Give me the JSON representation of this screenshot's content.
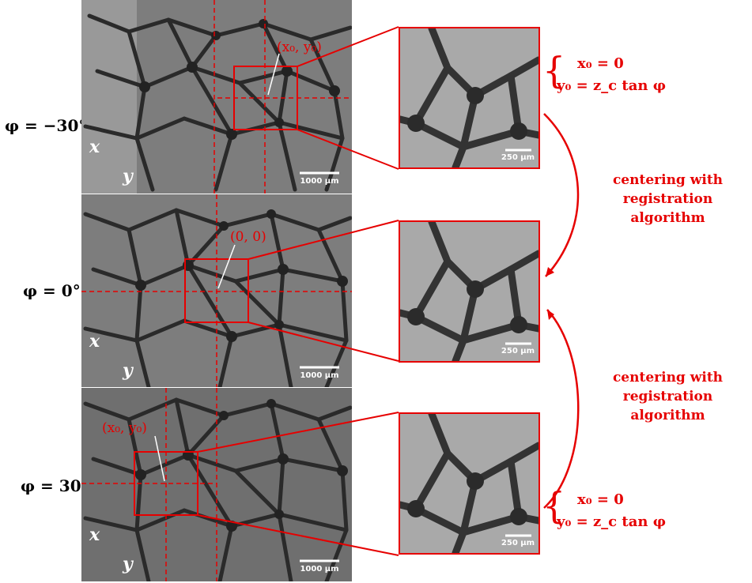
{
  "panels": [
    {
      "angle_label": "φ = −30°",
      "origin_label": "(x₀, y₀)",
      "scale_bar": "1000 μm",
      "axis_x": "x",
      "axis_y": "y"
    },
    {
      "angle_label": "φ = 0°",
      "origin_label": "(0, 0)",
      "scale_bar": "1000 μm",
      "axis_x": "x",
      "axis_y": "y"
    },
    {
      "angle_label": "φ = 30°",
      "origin_label": "(x₀, y₀)",
      "scale_bar": "1000 μm",
      "axis_x": "x",
      "axis_y": "y"
    }
  ],
  "zooms": [
    {
      "scale_bar": "250 μm"
    },
    {
      "scale_bar": "250 μm"
    },
    {
      "scale_bar": "250 μm"
    }
  ],
  "equations": {
    "top": {
      "line1": "x₀ = 0",
      "line2": "y₀ = z_c tan φ"
    },
    "bottom": {
      "line1": "x₀ = 0",
      "line2": "y₀ = z_c tan φ"
    }
  },
  "captions": {
    "upper": "centering with registration algorithm",
    "lower": "centering with registration algorithm"
  },
  "colors": {
    "accent": "#e60000",
    "micrograph": "#7d7d7d",
    "zoom_bg": "#a9a9a9"
  }
}
